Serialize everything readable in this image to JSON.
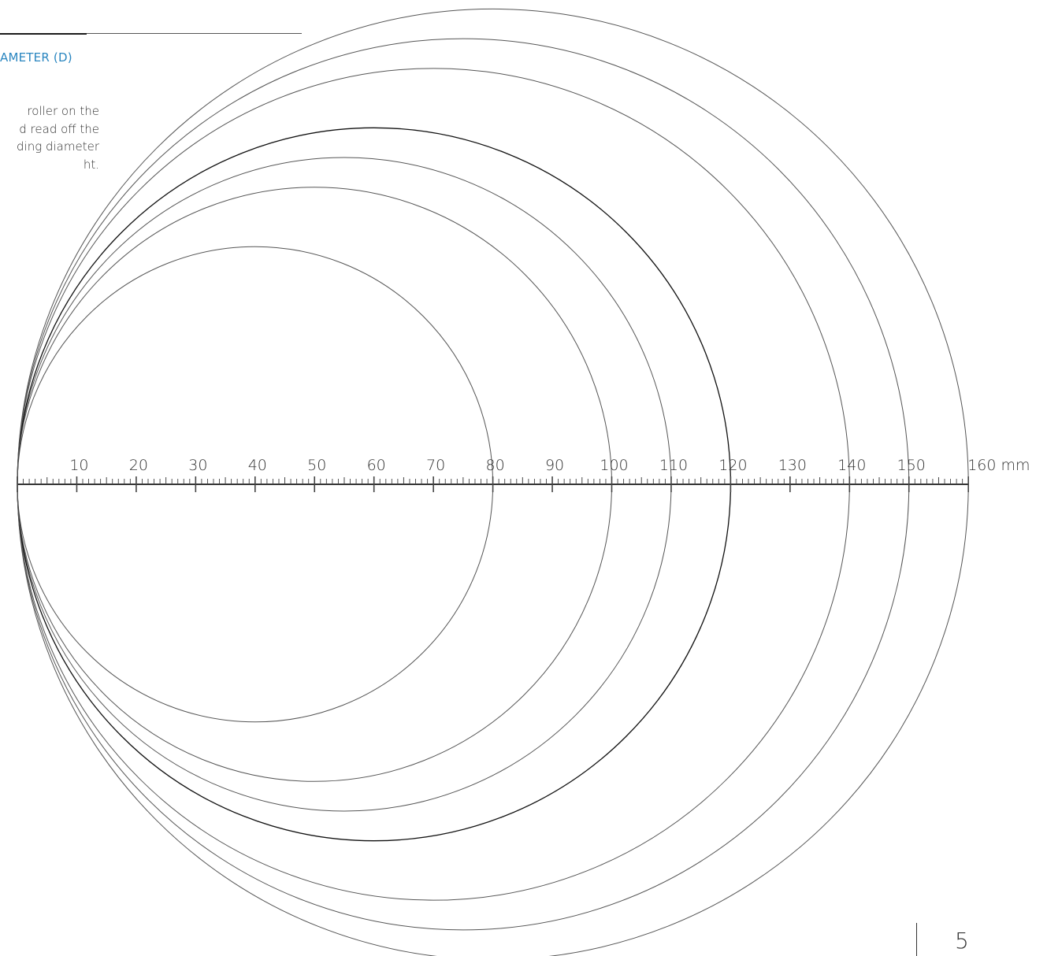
{
  "heading": "AMETER (D)",
  "instruction_lines": [
    "roller on the",
    "d read off the",
    "ding diameter",
    "ht."
  ],
  "scale": {
    "min": 0,
    "max": 160,
    "major_step": 10,
    "minor_step": 1,
    "labels": [
      "10",
      "20",
      "30",
      "40",
      "50",
      "60",
      "70",
      "80",
      "90",
      "100",
      "110",
      "120",
      "130",
      "140",
      "150",
      "160 mm"
    ],
    "unit": "mm"
  },
  "circle_diameters_mm": [
    80,
    100,
    110,
    120,
    140,
    150,
    160
  ],
  "emphasized_diameter_mm": 120,
  "page_number": "5",
  "colors": {
    "heading": "#2a86c0",
    "line": "#555555",
    "line_emphasis": "#111111"
  }
}
